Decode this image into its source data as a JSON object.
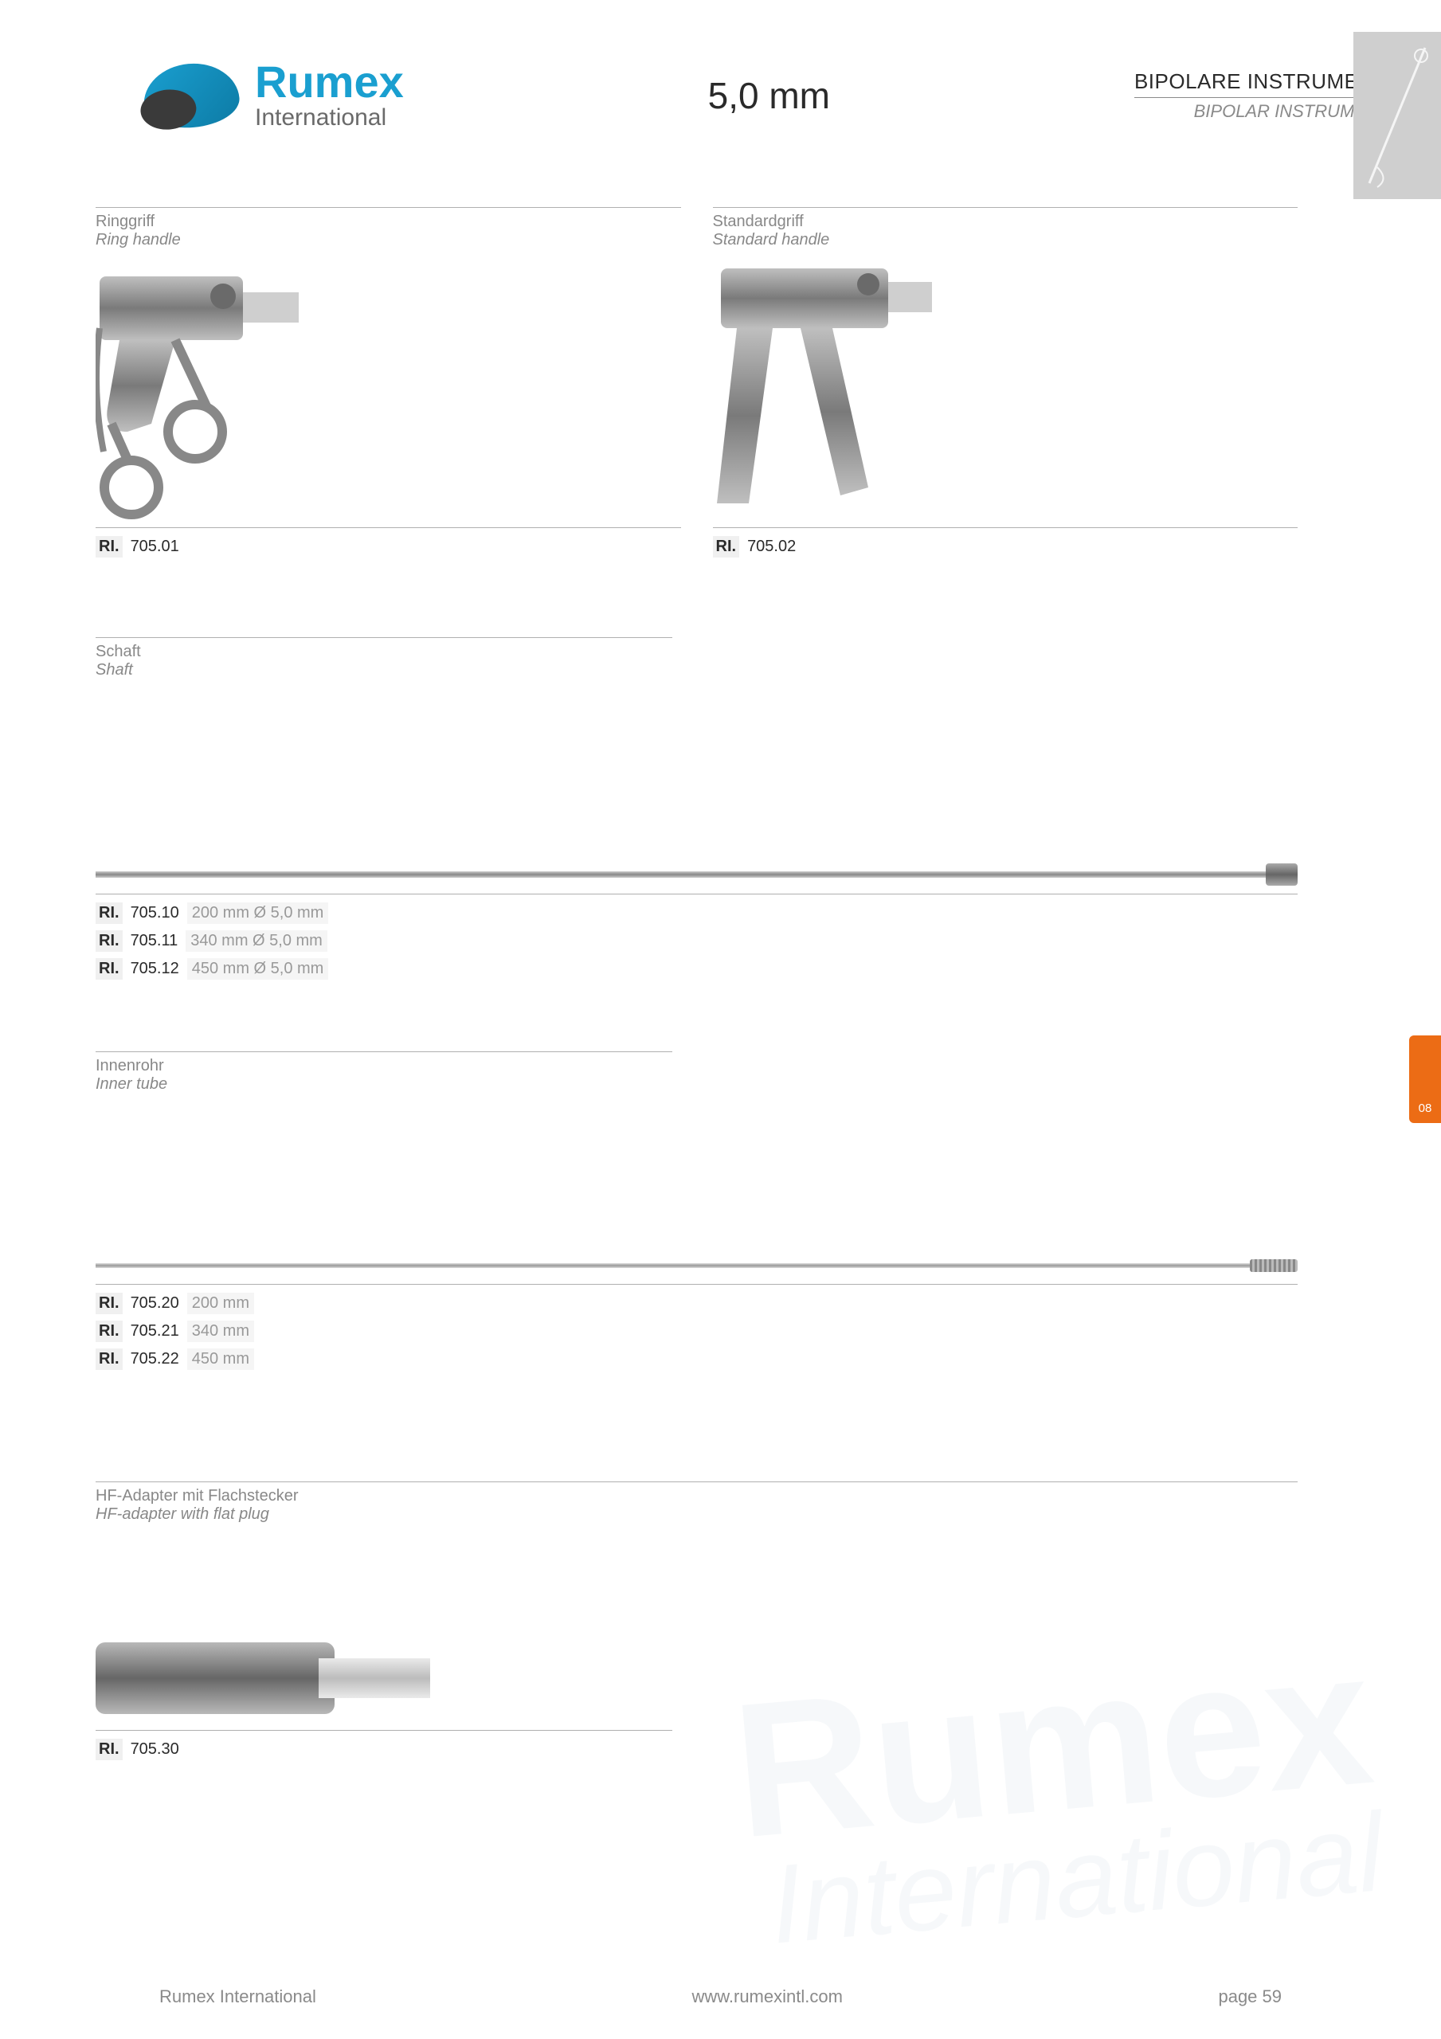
{
  "header": {
    "brand": "Rumex",
    "brand_sub": "International",
    "size": "5,0 mm",
    "category_de": "BIPOLARE INSTRUMENTE",
    "category_en": "BIPOLAR INSTRUMENTS"
  },
  "tab": {
    "label": "08"
  },
  "sections": {
    "handle_ring": {
      "title_de": "Ringgriff",
      "title_en": "Ring handle",
      "code_prefix": "RI.",
      "code": "705.01"
    },
    "handle_std": {
      "title_de": "Standardgriff",
      "title_en": "Standard handle",
      "code_prefix": "RI.",
      "code": "705.02"
    },
    "shaft": {
      "title_de": "Schaft",
      "title_en": "Shaft",
      "rows": [
        {
          "prefix": "RI.",
          "code": "705.10",
          "spec": "200 mm  Ø 5,0 mm"
        },
        {
          "prefix": "RI.",
          "code": "705.11",
          "spec": "340 mm  Ø 5,0 mm"
        },
        {
          "prefix": "RI.",
          "code": "705.12",
          "spec": "450 mm  Ø 5,0 mm"
        }
      ]
    },
    "inner": {
      "title_de": "Innenrohr",
      "title_en": "Inner tube",
      "rows": [
        {
          "prefix": "RI.",
          "code": "705.20",
          "spec": "200 mm"
        },
        {
          "prefix": "RI.",
          "code": "705.21",
          "spec": "340 mm"
        },
        {
          "prefix": "RI.",
          "code": "705.22",
          "spec": "450 mm"
        }
      ]
    },
    "adapter": {
      "title_de": "HF-Adapter mit Flachstecker",
      "title_en": "HF-adapter with flat plug",
      "code_prefix": "RI.",
      "code": "705.30"
    }
  },
  "footer": {
    "company": "Rumex International",
    "url": "www.rumexintl.com",
    "page": "page 59"
  },
  "colors": {
    "brand_blue": "#1a9fd0",
    "text_dark": "#2a2a2a",
    "text_gray": "#8a8a8a",
    "tab_orange": "#ec6c15",
    "rule": "#b0b0b0"
  }
}
